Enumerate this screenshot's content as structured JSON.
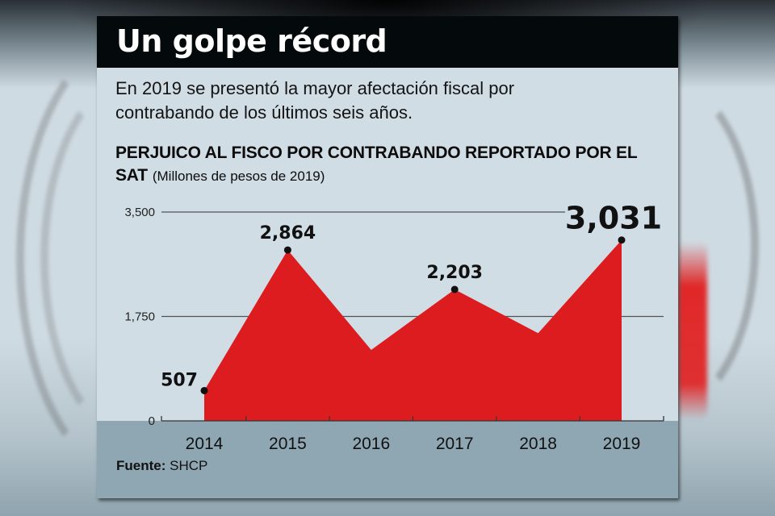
{
  "header": {
    "title": "Un golpe récord"
  },
  "subtitle": "En 2019 se presentó la mayor afectación fiscal por contrabando de los últimos seis años.",
  "chart_heading": {
    "title": "PERJUICO AL FISCO POR CONTRABANDO REPORTADO POR EL SAT",
    "unit": "(Millones de pesos de 2019)"
  },
  "source": {
    "label": "Fuente:",
    "value": "SHCP"
  },
  "colors": {
    "area": "#dc1c1f",
    "header_bg": "#040a0c",
    "card_bg": "#d0dde5",
    "footer_bg": "#8fa7b3",
    "gridline": "#3a3a3a"
  },
  "chart_data": {
    "type": "area",
    "title": "PERJUICO AL FISCO POR CONTRABANDO REPORTADO POR EL SAT",
    "subtitle": "(Millones de pesos de 2019)",
    "xlabel": "",
    "ylabel": "Millones de pesos de 2019",
    "categories": [
      "2014",
      "2015",
      "2016",
      "2017",
      "2018",
      "2019"
    ],
    "values": [
      507,
      2864,
      1190,
      2203,
      1470,
      3031
    ],
    "data_labels": [
      {
        "category": "2014",
        "text": "507"
      },
      {
        "category": "2015",
        "text": "2,864"
      },
      {
        "category": "2017",
        "text": "2,203"
      },
      {
        "category": "2019",
        "text": "3,031",
        "emphasis": true
      }
    ],
    "ylim": [
      0,
      3500
    ],
    "yticks": [
      {
        "value": 0,
        "label": "0"
      },
      {
        "value": 1750,
        "label": "1,750"
      },
      {
        "value": 3500,
        "label": "3,500"
      }
    ],
    "grid": true,
    "legend": "none"
  }
}
